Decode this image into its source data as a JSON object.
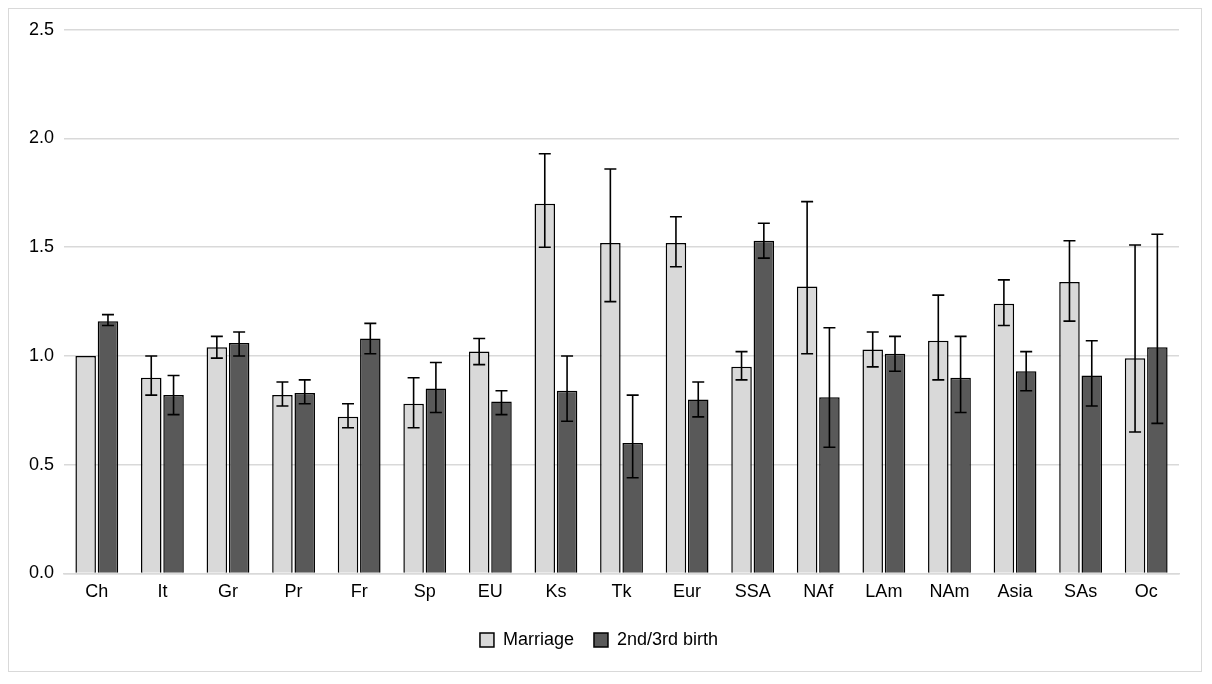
{
  "chart_data": {
    "type": "bar",
    "categories": [
      "Ch",
      "It",
      "Gr",
      "Pr",
      "Fr",
      "Sp",
      "EU",
      "Ks",
      "Tk",
      "Eur",
      "SSA",
      "NAf",
      "LAm",
      "NAm",
      "Asia",
      "SAs",
      "Oc"
    ],
    "series": [
      {
        "name": "Marriage",
        "color": "#d9d9d9",
        "values": [
          1.0,
          0.9,
          1.04,
          0.82,
          0.72,
          0.78,
          1.02,
          1.7,
          1.52,
          1.52,
          0.95,
          1.32,
          1.03,
          1.07,
          1.24,
          1.34,
          0.99
        ],
        "errors": [
          null,
          [
            0.82,
            1.0
          ],
          [
            0.99,
            1.09
          ],
          [
            0.77,
            0.88
          ],
          [
            0.67,
            0.78
          ],
          [
            0.67,
            0.9
          ],
          [
            0.96,
            1.08
          ],
          [
            1.5,
            1.93
          ],
          [
            1.25,
            1.86
          ],
          [
            1.41,
            1.64
          ],
          [
            0.89,
            1.02
          ],
          [
            1.01,
            1.71
          ],
          [
            0.95,
            1.11
          ],
          [
            0.89,
            1.28
          ],
          [
            1.14,
            1.35
          ],
          [
            1.16,
            1.53
          ],
          [
            0.65,
            1.51
          ]
        ]
      },
      {
        "name": "2nd/3rd birth",
        "color": "#595959",
        "values": [
          1.16,
          0.82,
          1.06,
          0.83,
          1.08,
          0.85,
          0.79,
          0.84,
          0.6,
          0.8,
          1.53,
          0.81,
          1.01,
          0.9,
          0.93,
          0.91,
          1.04
        ],
        "errors": [
          [
            1.14,
            1.19
          ],
          [
            0.73,
            0.91
          ],
          [
            1.0,
            1.11
          ],
          [
            0.78,
            0.89
          ],
          [
            1.01,
            1.15
          ],
          [
            0.74,
            0.97
          ],
          [
            0.73,
            0.84
          ],
          [
            0.7,
            1.0
          ],
          [
            0.44,
            0.82
          ],
          [
            0.72,
            0.88
          ],
          [
            1.45,
            1.61
          ],
          [
            0.58,
            1.13
          ],
          [
            0.93,
            1.09
          ],
          [
            0.74,
            1.09
          ],
          [
            0.84,
            1.02
          ],
          [
            0.77,
            1.07
          ],
          [
            0.69,
            1.56
          ]
        ]
      }
    ],
    "ylim": [
      0,
      2.5
    ],
    "yticks": [
      {
        "value": 0,
        "label": "0.0"
      },
      {
        "value": 0.5,
        "label": "0.5"
      },
      {
        "value": 1,
        "label": "1.0"
      },
      {
        "value": 1.5,
        "label": "1.5"
      },
      {
        "value": 2,
        "label": "2.0"
      },
      {
        "value": 2.5,
        "label": "2.5"
      }
    ],
    "grid": "y",
    "legend": "bottom"
  }
}
